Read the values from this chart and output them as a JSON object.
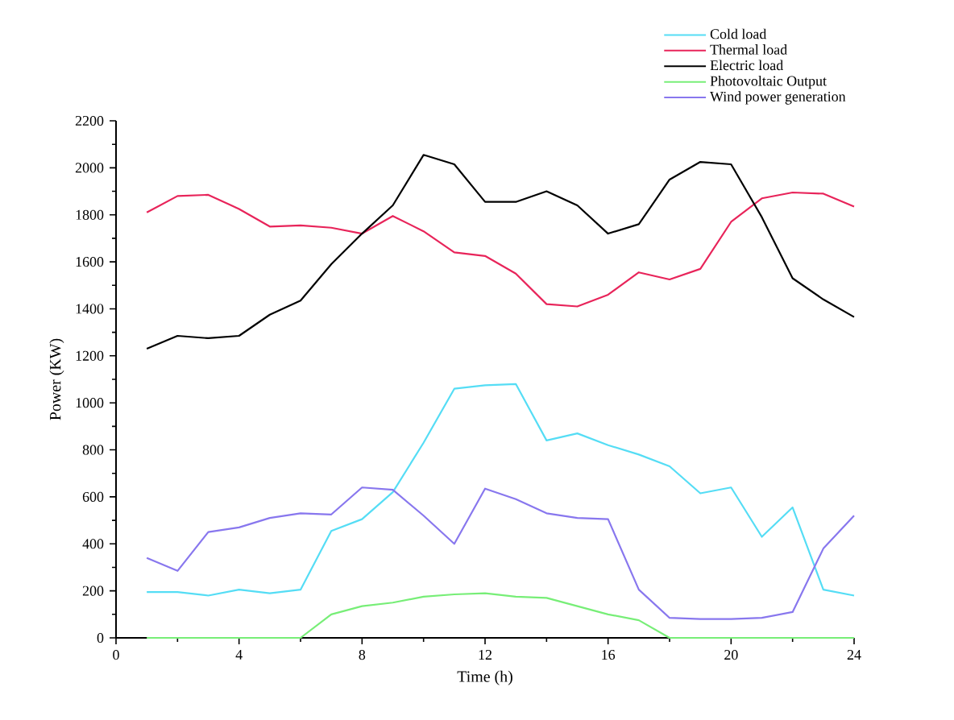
{
  "chart_data": {
    "type": "line",
    "xlabel": "Time (h)",
    "ylabel": "Power (KW)",
    "x": [
      1,
      2,
      3,
      4,
      5,
      6,
      7,
      8,
      9,
      10,
      11,
      12,
      13,
      14,
      15,
      16,
      17,
      18,
      19,
      20,
      21,
      22,
      23,
      24
    ],
    "xlim": [
      0,
      24
    ],
    "xticks": [
      0,
      4,
      8,
      12,
      16,
      20,
      24
    ],
    "ylim": [
      0,
      2200
    ],
    "yticks": [
      0,
      200,
      400,
      600,
      800,
      1000,
      1200,
      1400,
      1600,
      1800,
      2000,
      2200
    ],
    "legend": "top right",
    "grid": false,
    "marker": "none",
    "line_style": "solid",
    "series": [
      {
        "name": "Cold load",
        "color": "#55ddf5",
        "values": [
          195,
          195,
          180,
          205,
          190,
          205,
          455,
          505,
          620,
          830,
          1060,
          1075,
          1080,
          840,
          870,
          820,
          780,
          730,
          615,
          640,
          430,
          555,
          205,
          180
        ]
      },
      {
        "name": "Thermal load",
        "color": "#e8245a",
        "values": [
          1810,
          1880,
          1885,
          1825,
          1750,
          1755,
          1745,
          1720,
          1795,
          1730,
          1640,
          1625,
          1550,
          1420,
          1410,
          1460,
          1555,
          1525,
          1570,
          1770,
          1870,
          1895,
          1890,
          1835
        ]
      },
      {
        "name": "Electric load",
        "color": "#000000",
        "values": [
          1230,
          1285,
          1275,
          1285,
          1375,
          1435,
          1590,
          1720,
          1840,
          2055,
          2015,
          1855,
          1855,
          1900,
          1840,
          1720,
          1760,
          1950,
          2025,
          2015,
          1790,
          1530,
          1440,
          1365
        ]
      },
      {
        "name": "Photovoltaic Output",
        "color": "#77ee77",
        "values": [
          0,
          0,
          0,
          0,
          0,
          0,
          100,
          135,
          150,
          175,
          185,
          190,
          175,
          170,
          135,
          100,
          75,
          0,
          0,
          0,
          0,
          0,
          0,
          0
        ]
      },
      {
        "name": "Wind power generation",
        "color": "#8877ee",
        "values": [
          340,
          285,
          450,
          470,
          510,
          530,
          525,
          640,
          630,
          520,
          400,
          635,
          590,
          530,
          510,
          505,
          205,
          85,
          80,
          80,
          85,
          110,
          380,
          520
        ]
      }
    ]
  }
}
